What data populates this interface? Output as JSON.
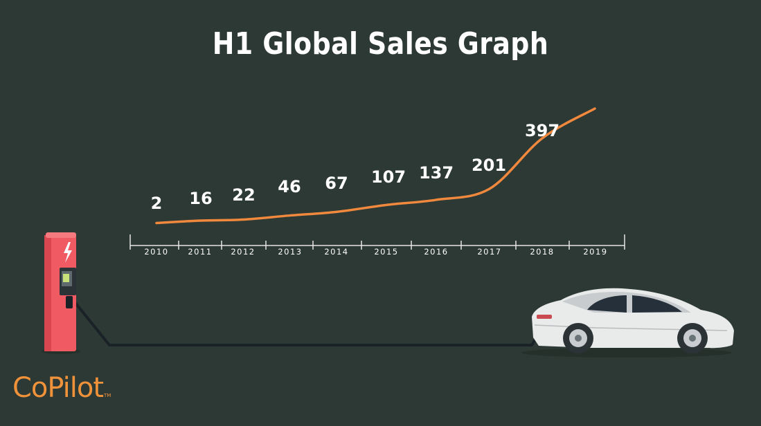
{
  "chart_data": {
    "type": "line",
    "title": "H1 Global Sales Graph",
    "x": [
      "2010",
      "2011",
      "2012",
      "2013",
      "2014",
      "2015",
      "2016",
      "2017",
      "2018",
      "2019"
    ],
    "series": [
      {
        "values": [
          2,
          16,
          22,
          46,
          67,
          107,
          137,
          201,
          397,
          null
        ]
      }
    ],
    "data_labels": [
      "2",
      "16",
      "22",
      "46",
      "67",
      "107",
      "137",
      "201",
      "397"
    ],
    "line_color": "#f0883e",
    "grid": false
  },
  "logo": {
    "text": "CoPilot",
    "tm": "TM"
  },
  "colors": {
    "background": "#2d3934",
    "accent": "#f0883e",
    "charger": "#f05a62",
    "cable": "#1a2228"
  }
}
